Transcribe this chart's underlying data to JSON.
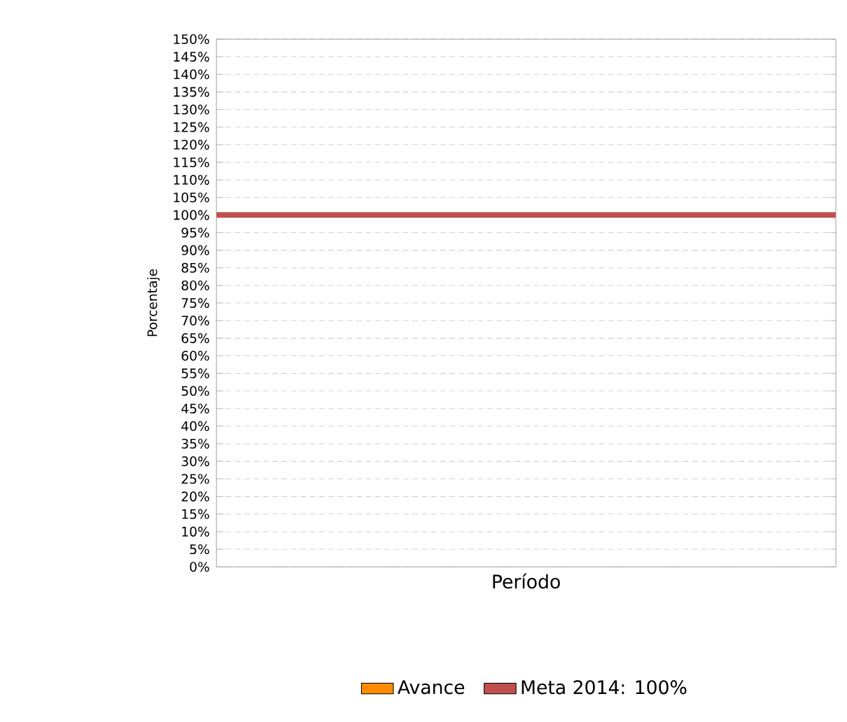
{
  "chart_data": {
    "type": "bar",
    "xlabel": "Período",
    "ylabel": "Porcentaje",
    "categories": [
      null
    ],
    "series": [
      {
        "name": "Avance",
        "color": "#ff8c00",
        "values": [
          null
        ]
      }
    ],
    "ref_lines": [
      {
        "axis": "y",
        "value": 100,
        "label": "Meta 2014: 100%",
        "color": "#c0504d"
      }
    ],
    "ylim": [
      0,
      150
    ],
    "yticks": [
      {
        "value": 0,
        "label": "0%"
      },
      {
        "value": 5,
        "label": "5%"
      },
      {
        "value": 10,
        "label": "10%"
      },
      {
        "value": 15,
        "label": "15%"
      },
      {
        "value": 20,
        "label": "20%"
      },
      {
        "value": 25,
        "label": "25%"
      },
      {
        "value": 30,
        "label": "30%"
      },
      {
        "value": 35,
        "label": "35%"
      },
      {
        "value": 40,
        "label": "40%"
      },
      {
        "value": 45,
        "label": "45%"
      },
      {
        "value": 50,
        "label": "50%"
      },
      {
        "value": 55,
        "label": "55%"
      },
      {
        "value": 60,
        "label": "60%"
      },
      {
        "value": 65,
        "label": "65%"
      },
      {
        "value": 70,
        "label": "70%"
      },
      {
        "value": 75,
        "label": "75%"
      },
      {
        "value": 80,
        "label": "80%"
      },
      {
        "value": 85,
        "label": "85%"
      },
      {
        "value": 90,
        "label": "90%"
      },
      {
        "value": 95,
        "label": "95%"
      },
      {
        "value": 100,
        "label": "100%"
      },
      {
        "value": 105,
        "label": "105%"
      },
      {
        "value": 110,
        "label": "110%"
      },
      {
        "value": 115,
        "label": "115%"
      },
      {
        "value": 120,
        "label": "120%"
      },
      {
        "value": 125,
        "label": "125%"
      },
      {
        "value": 130,
        "label": "130%"
      },
      {
        "value": 135,
        "label": "135%"
      },
      {
        "value": 140,
        "label": "140%"
      },
      {
        "value": 145,
        "label": "145%"
      },
      {
        "value": 150,
        "label": "150%"
      }
    ],
    "grid": "y",
    "legend": "bottom"
  }
}
